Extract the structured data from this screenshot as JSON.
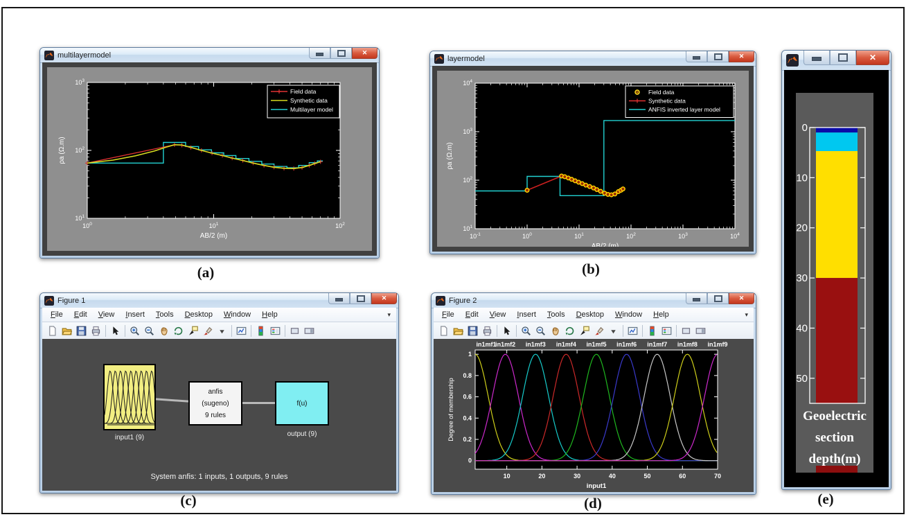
{
  "captions": {
    "a": "(a)",
    "b": "(b)",
    "c": "(c)",
    "d": "(d)",
    "e": "(e)"
  },
  "figure_windows": {
    "menu": [
      "File",
      "Edit",
      "View",
      "Insert",
      "Tools",
      "Desktop",
      "Window",
      "Help"
    ],
    "menu_chevron": "▾",
    "toolbar": [
      "new-document",
      "open-folder",
      "save",
      "print",
      "sep",
      "pointer",
      "sep",
      "zoom-in",
      "zoom-out",
      "pan-hand",
      "rotate-3d",
      "data-cursor",
      "brush",
      "dropdown",
      "sep",
      "link-plot",
      "sep",
      "insert-colorbar",
      "insert-legend",
      "sep",
      "hide-plot-tools",
      "show-plot-tools"
    ]
  },
  "window_a": {
    "title": "multilayermodel",
    "chart_data": {
      "type": "line",
      "xscale": "log",
      "yscale": "log",
      "xlabel": "AB/2 (m)",
      "ylabel": "ρa (Ω.m)",
      "xlim": [
        1,
        100
      ],
      "ylim": [
        10,
        1000
      ],
      "x_tick_exponents": [
        0,
        1,
        2
      ],
      "y_tick_exponents": [
        1,
        2,
        3
      ],
      "legend": [
        {
          "label": "Field data",
          "color": "#e03232",
          "marker": "plus-line"
        },
        {
          "label": "Synthetic data",
          "color": "#d8dc20",
          "marker": "line"
        },
        {
          "label": "Multilayer model",
          "color": "#22d2d2",
          "marker": "line"
        }
      ],
      "series": {
        "field_data": [
          [
            1,
            65
          ],
          [
            4.9,
            121
          ],
          [
            5.6,
            119
          ],
          [
            6.6,
            110
          ],
          [
            8,
            100
          ],
          [
            9.7,
            91
          ],
          [
            11.7,
            84
          ],
          [
            14,
            77
          ],
          [
            17,
            71
          ],
          [
            20.5,
            65
          ],
          [
            25,
            60
          ],
          [
            30,
            56.5
          ],
          [
            36,
            54.5
          ],
          [
            43,
            54
          ],
          [
            50,
            56
          ],
          [
            57,
            60
          ],
          [
            63,
            64
          ],
          [
            70,
            68
          ]
        ],
        "synthetic_data": [
          [
            1,
            65
          ],
          [
            1.6,
            72
          ],
          [
            2.4,
            83
          ],
          [
            3.4,
            98
          ],
          [
            4.3,
            113
          ],
          [
            4.9,
            121
          ],
          [
            5.6,
            120
          ],
          [
            6.6,
            111
          ],
          [
            8,
            100
          ],
          [
            9.7,
            91
          ],
          [
            11.7,
            84
          ],
          [
            14,
            77
          ],
          [
            17,
            71
          ],
          [
            20.5,
            65
          ],
          [
            25,
            60
          ],
          [
            30,
            56.5
          ],
          [
            36,
            54.5
          ],
          [
            43,
            54
          ],
          [
            50,
            56
          ],
          [
            57,
            60
          ],
          [
            63,
            64
          ],
          [
            70,
            68
          ]
        ],
        "multilayer_model_steps": [
          [
            1,
            4,
            65
          ],
          [
            4,
            6,
            131
          ],
          [
            6,
            7.6,
            114
          ],
          [
            7.6,
            9.6,
            102
          ],
          [
            9.6,
            12,
            92
          ],
          [
            12,
            15,
            84
          ],
          [
            15,
            19,
            76
          ],
          [
            19,
            24,
            69
          ],
          [
            24,
            30,
            63
          ],
          [
            30,
            38,
            58
          ],
          [
            38,
            47,
            55.5
          ],
          [
            47,
            57,
            60
          ],
          [
            57,
            66,
            66
          ],
          [
            66,
            73,
            70
          ]
        ]
      }
    }
  },
  "window_b": {
    "title": "layermodel",
    "chart_data": {
      "type": "line",
      "xscale": "log",
      "yscale": "log",
      "xlabel": "AB/2 (m)",
      "ylabel": "ρa (Ω.m)",
      "xlim": [
        0.1,
        10000
      ],
      "ylim": [
        10,
        10000
      ],
      "x_tick_exponents": [
        -1,
        0,
        1,
        2,
        3,
        4
      ],
      "y_tick_exponents": [
        1,
        2,
        3,
        4
      ],
      "legend": [
        {
          "label": "Field data",
          "color": "#ffe020",
          "marker": "circle"
        },
        {
          "label": "Synthetic data",
          "color": "#e03232",
          "marker": "plus-line"
        },
        {
          "label": "ANFIS inverted layer model",
          "color": "#22d2d2",
          "marker": "line"
        }
      ],
      "series": {
        "field_data": [
          [
            1,
            62
          ],
          [
            4.6,
            122
          ],
          [
            5.3,
            118
          ],
          [
            6.2,
            111
          ],
          [
            7.2,
            104
          ],
          [
            8.4,
            97
          ],
          [
            9.8,
            91
          ],
          [
            11.5,
            85
          ],
          [
            13.5,
            79
          ],
          [
            16,
            74
          ],
          [
            19,
            69
          ],
          [
            22,
            64
          ],
          [
            26,
            59
          ],
          [
            31,
            54
          ],
          [
            36,
            51
          ],
          [
            42,
            50
          ],
          [
            49,
            52
          ],
          [
            57,
            58
          ],
          [
            64,
            62
          ],
          [
            70,
            66
          ]
        ],
        "synthetic_data": [
          [
            1,
            62
          ],
          [
            4.6,
            122
          ],
          [
            5.3,
            118
          ],
          [
            6.2,
            111
          ],
          [
            7.2,
            104
          ],
          [
            8.4,
            97
          ],
          [
            9.8,
            91
          ],
          [
            11.5,
            85
          ],
          [
            13.5,
            79
          ],
          [
            16,
            74
          ],
          [
            19,
            69
          ],
          [
            22,
            64
          ],
          [
            26,
            59
          ],
          [
            31,
            54
          ],
          [
            36,
            51
          ],
          [
            42,
            50
          ],
          [
            49,
            52
          ],
          [
            57,
            58
          ],
          [
            64,
            62
          ],
          [
            70,
            66
          ]
        ],
        "anfis_layer_model_steps": [
          [
            0.1,
            1,
            60
          ],
          [
            1,
            4.3,
            120
          ],
          [
            4.3,
            30,
            48
          ],
          [
            30,
            10000,
            1700
          ]
        ]
      }
    }
  },
  "window_c": {
    "title": "Figure 1",
    "diagram": {
      "input_label": "input1 (9)",
      "node_lines": [
        "anfis",
        "(sugeno)",
        "9 rules"
      ],
      "output_text": "f(u)",
      "output_label": "output (9)",
      "status": "System anfis: 1 inputs, 1 outputs, 9 rules"
    }
  },
  "window_d": {
    "title": "Figure 2",
    "chart_data": {
      "type": "line",
      "mf_labels": [
        "in1mf1",
        "in1mf2",
        "in1mf3",
        "in1mf4",
        "in1mf5",
        "in1mf6",
        "in1mf7",
        "in1mf8",
        "in1mf9"
      ],
      "mf_centers": [
        1,
        9.6,
        18.2,
        26.9,
        35.5,
        44.1,
        52.8,
        61.4,
        70
      ],
      "mf_sigma": 3.7,
      "mf_colors": [
        "#cfcf1a",
        "#cc29cc",
        "#17cccc",
        "#cc2929",
        "#1fb81f",
        "#3a3acc",
        "#c8c8c8",
        "#cfcf1a",
        "#cc29cc"
      ],
      "xlabel": "input1",
      "ylabel": "Degree of membership",
      "xlim": [
        1,
        70
      ],
      "ylim": [
        -0.08,
        1.04
      ],
      "xticks": [
        10,
        20,
        30,
        40,
        50,
        60,
        70
      ],
      "yticks": [
        0,
        0.2,
        0.4,
        0.6,
        0.8,
        1
      ]
    }
  },
  "window_e": {
    "label_lines": [
      "Geoelectric",
      "section",
      "depth(m)"
    ],
    "chart_data": {
      "type": "bar",
      "orientation": "vertical-depth",
      "axis_max": 55,
      "ticks": [
        0,
        10,
        20,
        30,
        40,
        50
      ],
      "segments": [
        {
          "from": 0,
          "to": 1,
          "color": "#0a0aa8"
        },
        {
          "from": 1,
          "to": 4.7,
          "color": "#00c8f0"
        },
        {
          "from": 4.7,
          "to": 30,
          "color": "#ffdf00"
        },
        {
          "from": 30,
          "to": 55,
          "color": "#991010"
        }
      ]
    }
  }
}
